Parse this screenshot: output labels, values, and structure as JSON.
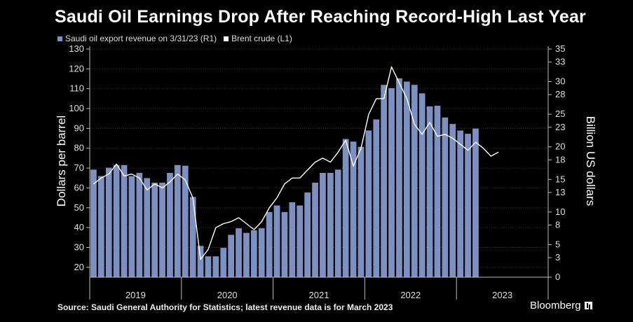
{
  "title": "Saudi Oil Earnings Drop After Reaching Record-High Last Year",
  "legend": [
    {
      "label": "Saudi oil export revenue on 3/31/23 (R1)",
      "color": "#7d90c2"
    },
    {
      "label": "Brent crude (L1)",
      "color": "#ffffff"
    }
  ],
  "source": "Source: Saudi General Authority for Statistics; latest revenue data is for March 2023",
  "brand": "Bloomberg",
  "chart_data": {
    "type": "bar",
    "ylabel_left": "Dollars per barrel",
    "ylabel_right": "Billion US dollars",
    "left_axis": {
      "min": 15,
      "max": 130,
      "ticks": [
        20,
        30,
        40,
        50,
        60,
        70,
        80,
        90,
        100,
        110,
        120,
        130
      ]
    },
    "right_axis": {
      "min": 0,
      "max": 35,
      "ticks": [
        0,
        3,
        5,
        8,
        10,
        13,
        15,
        18,
        20,
        23,
        25,
        28,
        30,
        33,
        35
      ]
    },
    "year_labels": [
      "2019",
      "2020",
      "2021",
      "2022",
      "2023"
    ],
    "month_start": "2019-01",
    "series": [
      {
        "name": "Saudi oil export revenue on 3/31/23 (R1)",
        "axis": "right",
        "values": [
          16.5,
          15.5,
          16.8,
          17.2,
          17.2,
          15.5,
          16,
          15.2,
          14.5,
          14.5,
          16,
          17.2,
          17.1,
          12.3,
          4.8,
          3.2,
          3.2,
          4.5,
          6.5,
          7.5,
          6.8,
          7.2,
          7.5,
          10,
          11,
          10,
          11.5,
          11,
          13,
          14.5,
          16,
          16,
          16.5,
          21.2,
          20.8,
          20,
          22.5,
          24.2,
          29.5,
          29,
          30.5,
          30,
          29.5,
          28.2,
          26.2,
          26.3,
          24.5,
          23.5,
          22.5,
          22,
          22.8
        ]
      },
      {
        "name": "Brent crude (L1)",
        "axis": "left",
        "values": [
          62,
          65,
          67,
          72,
          66,
          67,
          65,
          59,
          62,
          60,
          63,
          67,
          64,
          55,
          24,
          29,
          40,
          42,
          43,
          45,
          42,
          39,
          43,
          50,
          55,
          62,
          65,
          65,
          69,
          73,
          75,
          73,
          78,
          84,
          71,
          80,
          97,
          105,
          105,
          121,
          113,
          105,
          92,
          87,
          93,
          86,
          87,
          85,
          82,
          79,
          83,
          80,
          76,
          78
        ]
      }
    ]
  }
}
